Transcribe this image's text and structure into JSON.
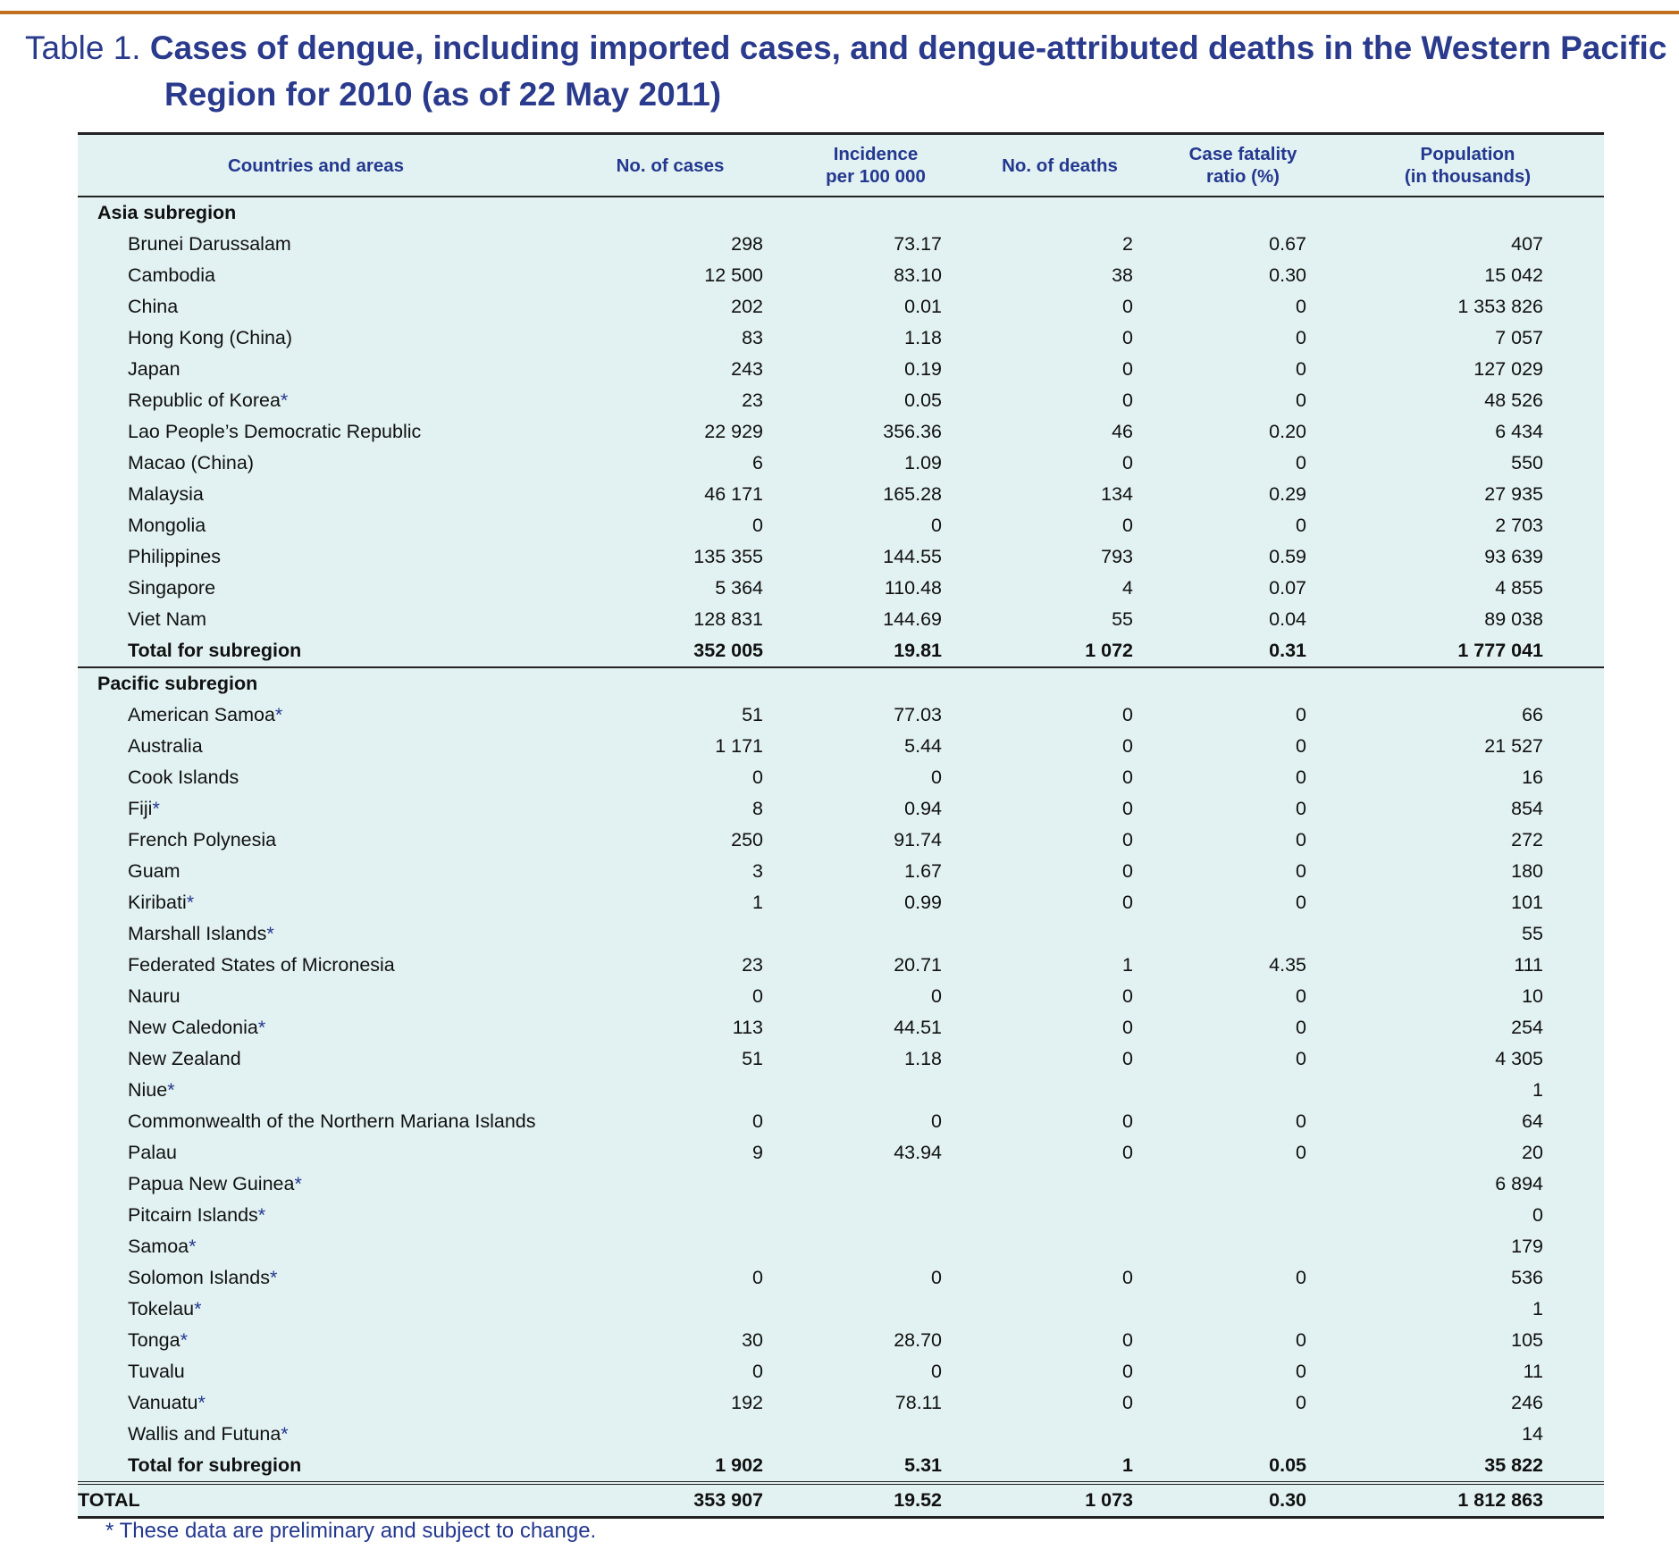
{
  "header": {
    "label": "Table 1.",
    "title": "Cases of dengue, including imported cases, and dengue-attributed deaths in the Western Pacific Region for 2010 (as of 22 May 2011)"
  },
  "table": {
    "columns": [
      [
        "Countries and areas"
      ],
      [
        "No. of cases"
      ],
      [
        "Incidence",
        "per 100 000"
      ],
      [
        "No. of deaths"
      ],
      [
        "Case fatality",
        "ratio (%)"
      ],
      [
        "Population",
        "(in thousands)"
      ]
    ],
    "sections": [
      {
        "title": "Asia subregion",
        "rows": [
          {
            "name": "Brunei Darussalam",
            "values": [
              "298",
              "73.17",
              "2",
              "0.67",
              "407"
            ]
          },
          {
            "name": "Cambodia",
            "values": [
              "12 500",
              "83.10",
              "38",
              "0.30",
              "15 042"
            ]
          },
          {
            "name": "China",
            "values": [
              "202",
              "0.01",
              "0",
              "0",
              "1 353 826"
            ]
          },
          {
            "name": "Hong Kong (China)",
            "values": [
              "83",
              "1.18",
              "0",
              "0",
              "7 057"
            ]
          },
          {
            "name": "Japan",
            "values": [
              "243",
              "0.19",
              "0",
              "0",
              "127 029"
            ]
          },
          {
            "name": "Republic of Korea",
            "note": "*",
            "values": [
              "23",
              "0.05",
              "0",
              "0",
              "48 526"
            ]
          },
          {
            "name": "Lao People’s Democratic Republic",
            "values": [
              "22 929",
              "356.36",
              "46",
              "0.20",
              "6 434"
            ]
          },
          {
            "name": "Macao (China)",
            "values": [
              "6",
              "1.09",
              "0",
              "0",
              "550"
            ]
          },
          {
            "name": "Malaysia",
            "values": [
              "46 171",
              "165.28",
              "134",
              "0.29",
              "27 935"
            ]
          },
          {
            "name": "Mongolia",
            "values": [
              "0",
              "0",
              "0",
              "0",
              "2 703"
            ]
          },
          {
            "name": "Philippines",
            "values": [
              "135 355",
              "144.55",
              "793",
              "0.59",
              "93 639"
            ]
          },
          {
            "name": "Singapore",
            "values": [
              "5 364",
              "110.48",
              "4",
              "0.07",
              "4 855"
            ]
          },
          {
            "name": "Viet Nam",
            "values": [
              "128 831",
              "144.69",
              "55",
              "0.04",
              "89 038"
            ]
          }
        ],
        "total": {
          "label": "Total for subregion",
          "values": [
            "352 005",
            "19.81",
            "1 072",
            "0.31",
            "1 777 041"
          ]
        }
      },
      {
        "title": "Pacific subregion",
        "rows": [
          {
            "name": "American Samoa",
            "note": "*",
            "values": [
              "51",
              "77.03",
              "0",
              "0",
              "66"
            ]
          },
          {
            "name": "Australia",
            "values": [
              "1 171",
              "5.44",
              "0",
              "0",
              "21 527"
            ]
          },
          {
            "name": "Cook Islands",
            "values": [
              "0",
              "0",
              "0",
              "0",
              "16"
            ]
          },
          {
            "name": "Fiji",
            "note": "*",
            "values": [
              "8",
              "0.94",
              "0",
              "0",
              "854"
            ]
          },
          {
            "name": "French Polynesia",
            "values": [
              "250",
              "91.74",
              "0",
              "0",
              "272"
            ]
          },
          {
            "name": "Guam",
            "values": [
              "3",
              "1.67",
              "0",
              "0",
              "180"
            ]
          },
          {
            "name": "Kiribati",
            "note": "*",
            "values": [
              "1",
              "0.99",
              "0",
              "0",
              "101"
            ]
          },
          {
            "name": "Marshall Islands",
            "note": "*",
            "values": [
              null,
              null,
              null,
              null,
              "55"
            ]
          },
          {
            "name": "Federated States of Micronesia",
            "values": [
              "23",
              "20.71",
              "1",
              "4.35",
              "111"
            ]
          },
          {
            "name": "Nauru",
            "values": [
              "0",
              "0",
              "0",
              "0",
              "10"
            ]
          },
          {
            "name": "New Caledonia",
            "note": "*",
            "values": [
              "113",
              "44.51",
              "0",
              "0",
              "254"
            ]
          },
          {
            "name": "New Zealand",
            "values": [
              "51",
              "1.18",
              "0",
              "0",
              "4 305"
            ]
          },
          {
            "name": "Niue",
            "note": "*",
            "values": [
              null,
              null,
              null,
              null,
              "1"
            ]
          },
          {
            "name": "Commonwealth of the Northern Mariana Islands",
            "values": [
              "0",
              "0",
              "0",
              "0",
              "64"
            ]
          },
          {
            "name": "Palau",
            "values": [
              "9",
              "43.94",
              "0",
              "0",
              "20"
            ]
          },
          {
            "name": "Papua New Guinea",
            "note": "*",
            "values": [
              null,
              null,
              null,
              null,
              "6 894"
            ]
          },
          {
            "name": "Pitcairn Islands",
            "note": "*",
            "values": [
              null,
              null,
              null,
              null,
              "0"
            ]
          },
          {
            "name": "Samoa",
            "note": "*",
            "values": [
              null,
              null,
              null,
              null,
              "179"
            ]
          },
          {
            "name": "Solomon Islands",
            "note": "*",
            "values": [
              "0",
              "0",
              "0",
              "0",
              "536"
            ]
          },
          {
            "name": "Tokelau",
            "note": "*",
            "values": [
              null,
              null,
              null,
              null,
              "1"
            ]
          },
          {
            "name": "Tonga",
            "note": "*",
            "values": [
              "30",
              "28.70",
              "0",
              "0",
              "105"
            ]
          },
          {
            "name": "Tuvalu",
            "values": [
              "0",
              "0",
              "0",
              "0",
              "11"
            ]
          },
          {
            "name": "Vanuatu",
            "note": "*",
            "values": [
              "192",
              "78.11",
              "0",
              "0",
              "246"
            ]
          },
          {
            "name": "Wallis and Futuna",
            "note": "*",
            "values": [
              null,
              null,
              null,
              null,
              "14"
            ]
          }
        ],
        "total": {
          "label": "Total for subregion",
          "values": [
            "1 902",
            "5.31",
            "1",
            "0.05",
            "35 822"
          ]
        }
      }
    ],
    "grand_total": {
      "label": "TOTAL",
      "values": [
        "353 907",
        "19.52",
        "1 073",
        "0.30",
        "1 812 863"
      ]
    }
  },
  "footnote": "* These data are preliminary and subject to change."
}
